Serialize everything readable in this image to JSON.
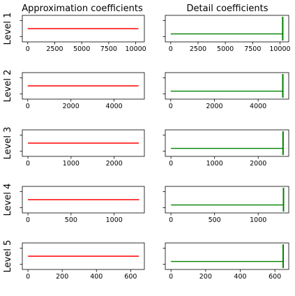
{
  "figure": {
    "col_titles": [
      "Approximation coefficients",
      "Detail coefficients"
    ]
  },
  "chart_data": [
    {
      "type": "line",
      "level": 1,
      "ylabel": "Level 1",
      "column": "approximation",
      "color": "#ff0000",
      "xlim": [
        -500,
        10800
      ],
      "xticks": [
        0,
        2500,
        5000,
        7500,
        10000
      ],
      "x": [
        0,
        10250
      ],
      "y": [
        0.5,
        0.5
      ],
      "ylim": [
        0,
        1
      ],
      "yticks": [
        0.2,
        0.8
      ]
    },
    {
      "type": "line",
      "level": 1,
      "ylabel": "",
      "column": "detail",
      "color": "#008000",
      "xlim": [
        -500,
        10800
      ],
      "xticks": [
        0,
        2500,
        5000,
        7500,
        10000
      ],
      "x": [
        0,
        10250
      ],
      "y": [
        0.5,
        0.5
      ],
      "spike_x": 10250,
      "spike_y": [
        0.0,
        1.0
      ],
      "ylim": [
        0,
        1
      ],
      "yticks": [
        0.2,
        0.8
      ]
    },
    {
      "type": "line",
      "level": 2,
      "ylabel": "Level 2",
      "column": "approximation",
      "color": "#ff0000",
      "xlim": [
        -250,
        5400
      ],
      "xticks": [
        0,
        2000,
        4000
      ],
      "x": [
        0,
        5130
      ],
      "y": [
        0.5,
        0.5
      ],
      "ylim": [
        0,
        1
      ],
      "yticks": [
        0.2,
        0.8
      ]
    },
    {
      "type": "line",
      "level": 2,
      "ylabel": "",
      "column": "detail",
      "color": "#008000",
      "xlim": [
        -250,
        5400
      ],
      "xticks": [
        0,
        2000,
        4000
      ],
      "x": [
        0,
        5130
      ],
      "y": [
        0.5,
        0.5
      ],
      "spike_x": 5130,
      "spike_y": [
        0.0,
        1.0
      ],
      "ylim": [
        0,
        1
      ],
      "yticks": [
        0.2,
        0.8
      ]
    },
    {
      "type": "line",
      "level": 3,
      "ylabel": "Level 3",
      "column": "approximation",
      "color": "#ff0000",
      "xlim": [
        -130,
        2700
      ],
      "xticks": [
        0,
        1000,
        2000
      ],
      "x": [
        0,
        2570
      ],
      "y": [
        0.5,
        0.5
      ],
      "ylim": [
        0,
        1
      ],
      "yticks": [
        0.2,
        0.8
      ]
    },
    {
      "type": "line",
      "level": 3,
      "ylabel": "",
      "column": "detail",
      "color": "#008000",
      "xlim": [
        -130,
        2700
      ],
      "xticks": [
        0,
        1000,
        2000
      ],
      "x": [
        0,
        2570
      ],
      "y": [
        0.5,
        0.5
      ],
      "spike_x": 2570,
      "spike_y": [
        0.0,
        1.0
      ],
      "ylim": [
        0,
        1
      ],
      "yticks": [
        0.2,
        0.8
      ]
    },
    {
      "type": "line",
      "level": 4,
      "ylabel": "Level 4",
      "column": "approximation",
      "color": "#ff0000",
      "xlim": [
        -65,
        1350
      ],
      "xticks": [
        0,
        500,
        1000
      ],
      "x": [
        0,
        1290
      ],
      "y": [
        0.5,
        0.5
      ],
      "ylim": [
        0,
        1
      ],
      "yticks": [
        0.2,
        0.8
      ]
    },
    {
      "type": "line",
      "level": 4,
      "ylabel": "",
      "column": "detail",
      "color": "#008000",
      "xlim": [
        -65,
        1350
      ],
      "xticks": [
        0,
        500,
        1000
      ],
      "x": [
        0,
        1290
      ],
      "y": [
        0.5,
        0.5
      ],
      "spike_x": 1290,
      "spike_y": [
        0.0,
        1.0
      ],
      "ylim": [
        0,
        1
      ],
      "yticks": [
        0.2,
        0.8
      ]
    },
    {
      "type": "line",
      "level": 5,
      "ylabel": "Level 5",
      "column": "approximation",
      "color": "#ff0000",
      "xlim": [
        -33,
        680
      ],
      "xticks": [
        0,
        200,
        400,
        600
      ],
      "x": [
        0,
        648
      ],
      "y": [
        0.5,
        0.5
      ],
      "ylim": [
        0,
        1
      ],
      "yticks": [
        0.2,
        0.8
      ]
    },
    {
      "type": "line",
      "level": 5,
      "ylabel": "",
      "column": "detail",
      "color": "#008000",
      "xlim": [
        -33,
        680
      ],
      "xticks": [
        0,
        200,
        400,
        600
      ],
      "x": [
        0,
        648
      ],
      "y": [
        0.5,
        0.5
      ],
      "spike_x": 648,
      "spike_y": [
        0.0,
        1.0
      ],
      "ylim": [
        0,
        1
      ],
      "yticks": [
        0.2,
        0.8
      ]
    }
  ]
}
